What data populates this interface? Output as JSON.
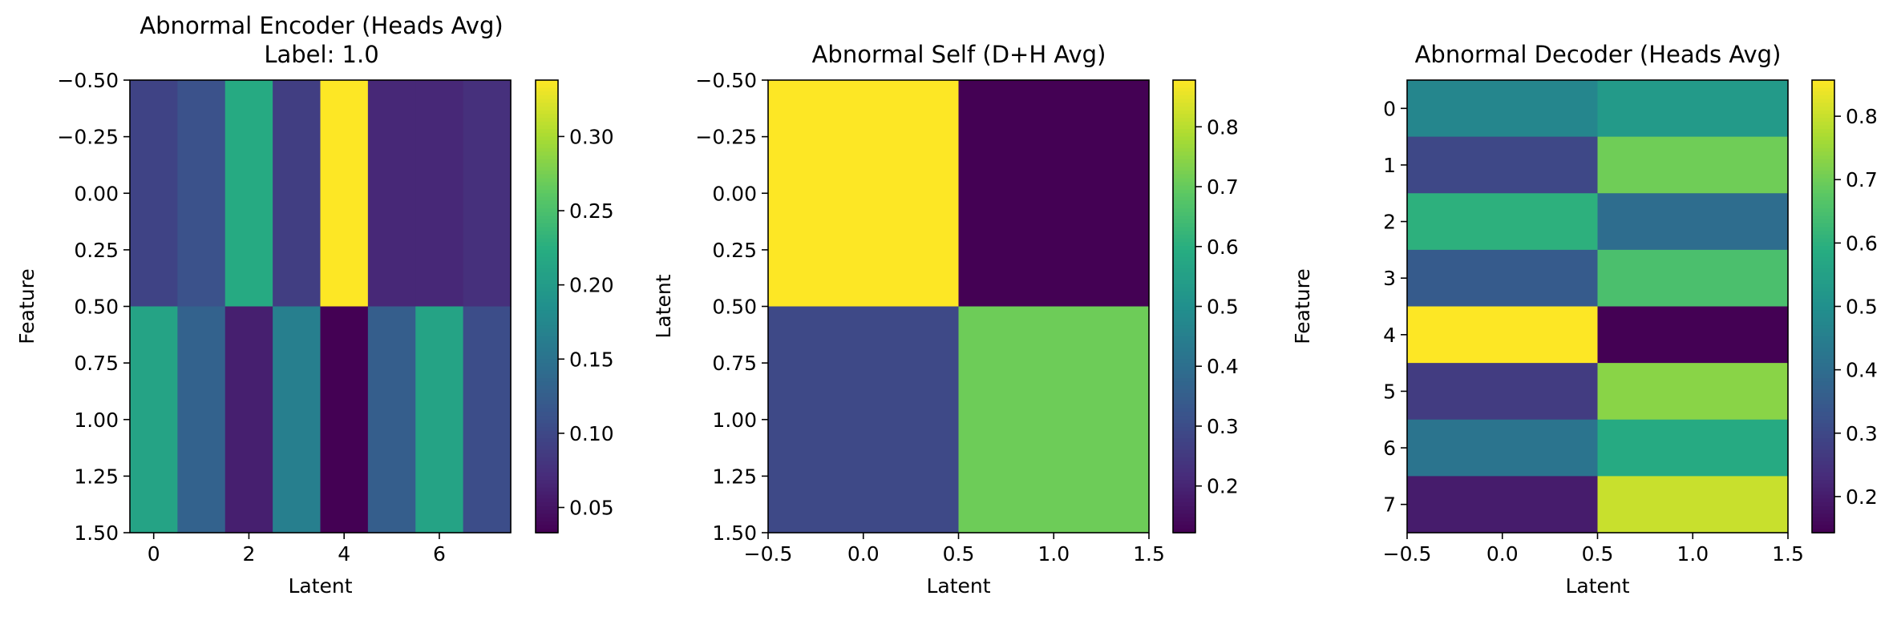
{
  "figure": {
    "panel_1_title_line1": "Abnormal Encoder (Heads Avg)",
    "panel_1_title_line2": "Label: 1.0",
    "panel_2_title": "Abnormal Self (D+H Avg)",
    "panel_3_title": "Abnormal Decoder (Heads Avg)"
  },
  "chart_data": [
    {
      "type": "heatmap",
      "title": "Abnormal Encoder (Heads Avg)",
      "subtitle": "Label: 1.0",
      "xlabel": "Latent",
      "ylabel": "Feature",
      "colormap": "viridis",
      "xlim": [
        -0.5,
        7.5
      ],
      "ylim": [
        1.5,
        -0.5
      ],
      "xticks": [
        "0",
        "2",
        "4",
        "6"
      ],
      "yticks": [
        "−0.50",
        "−0.25",
        "0.00",
        "0.25",
        "0.50",
        "0.75",
        "1.00",
        "1.25",
        "1.50"
      ],
      "colorbar_range": [
        0.033,
        0.338
      ],
      "colorbar_ticks": [
        "0.05",
        "0.10",
        "0.15",
        "0.20",
        "0.25",
        "0.30"
      ],
      "values": [
        [
          0.095,
          0.11,
          0.22,
          0.09,
          0.338,
          0.068,
          0.068,
          0.075
        ],
        [
          0.21,
          0.13,
          0.06,
          0.165,
          0.033,
          0.125,
          0.21,
          0.105
        ]
      ]
    },
    {
      "type": "heatmap",
      "title": "Abnormal Self (D+H Avg)",
      "xlabel": "Latent",
      "ylabel": "Latent",
      "colormap": "viridis",
      "xlim": [
        -0.5,
        1.5
      ],
      "ylim": [
        1.5,
        -0.5
      ],
      "xticks": [
        "−0.5",
        "0.0",
        "0.5",
        "1.0",
        "1.5"
      ],
      "yticks": [
        "−0.50",
        "−0.25",
        "0.00",
        "0.25",
        "0.50",
        "0.75",
        "1.00",
        "1.25",
        "1.50"
      ],
      "colorbar_range": [
        0.122,
        0.878
      ],
      "colorbar_ticks": [
        "0.2",
        "0.3",
        "0.4",
        "0.5",
        "0.6",
        "0.7",
        "0.8"
      ],
      "values": [
        [
          0.878,
          0.122
        ],
        [
          0.29,
          0.71
        ]
      ]
    },
    {
      "type": "heatmap",
      "title": "Abnormal Decoder (Heads Avg)",
      "xlabel": "Latent",
      "ylabel": "Feature",
      "colormap": "viridis",
      "xlim": [
        -0.5,
        1.5
      ],
      "ylim": [
        7.5,
        -0.5
      ],
      "xticks": [
        "−0.5",
        "0.0",
        "0.5",
        "1.0",
        "1.5"
      ],
      "yticks": [
        "0",
        "1",
        "2",
        "3",
        "4",
        "5",
        "6",
        "7"
      ],
      "colorbar_range": [
        0.143,
        0.857
      ],
      "colorbar_ticks": [
        "0.2",
        "0.3",
        "0.4",
        "0.5",
        "0.6",
        "0.7",
        "0.8"
      ],
      "values": [
        [
          0.47,
          0.53
        ],
        [
          0.3,
          0.7
        ],
        [
          0.6,
          0.4
        ],
        [
          0.35,
          0.65
        ],
        [
          0.857,
          0.143
        ],
        [
          0.27,
          0.73
        ],
        [
          0.42,
          0.58
        ],
        [
          0.2,
          0.8
        ]
      ]
    }
  ]
}
